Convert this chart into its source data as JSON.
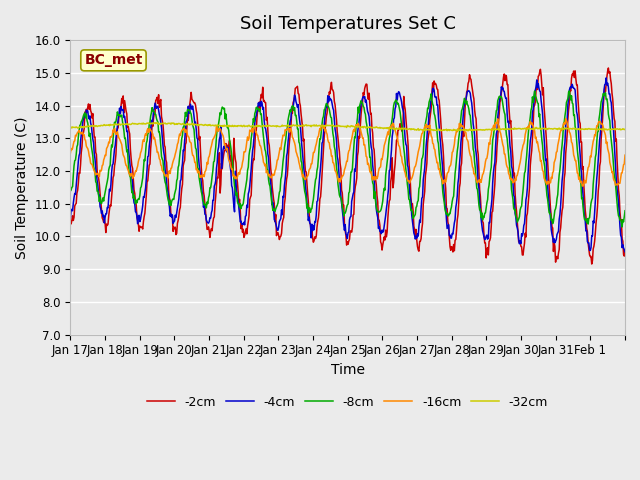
{
  "title": "Soil Temperatures Set C",
  "xlabel": "Time",
  "ylabel": "Soil Temperature (C)",
  "ylim": [
    7.0,
    16.0
  ],
  "yticks": [
    7.0,
    8.0,
    9.0,
    10.0,
    11.0,
    12.0,
    13.0,
    14.0,
    15.0,
    16.0
  ],
  "xtick_labels": [
    "Jan 17",
    "Jan 18",
    "Jan 19",
    "Jan 20",
    "Jan 21",
    "Jan 22",
    "Jan 23",
    "Jan 24",
    "Jan 25",
    "Jan 26",
    "Jan 27",
    "Jan 28",
    "Jan 29",
    "Jan 30",
    "Jan 31",
    "Feb 1"
  ],
  "legend_labels": [
    "-2cm",
    "-4cm",
    "-8cm",
    "-16cm",
    "-32cm"
  ],
  "line_colors": [
    "#cc0000",
    "#0000cc",
    "#00aa00",
    "#ff8800",
    "#cccc00"
  ],
  "annotation_text": "BC_met",
  "annotation_color": "#8B0000",
  "annotation_bg": "#ffffcc",
  "plot_bg_color": "#e8e8e8",
  "fig_bg_color": "#ebebeb",
  "grid_color": "#ffffff",
  "title_fontsize": 13,
  "label_fontsize": 10,
  "tick_fontsize": 8.5
}
